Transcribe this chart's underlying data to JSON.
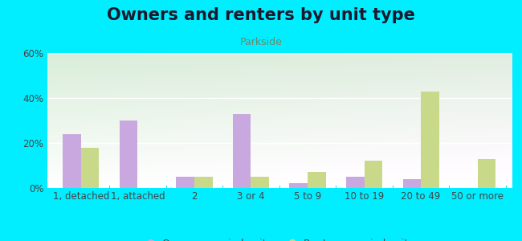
{
  "title": "Owners and renters by unit type",
  "subtitle": "Parkside",
  "categories": [
    "1, detached",
    "1, attached",
    "2",
    "3 or 4",
    "5 to 9",
    "10 to 19",
    "20 to 49",
    "50 or more"
  ],
  "owner_values": [
    24,
    30,
    5,
    33,
    2,
    5,
    4,
    0
  ],
  "renter_values": [
    18,
    0,
    5,
    5,
    7,
    12,
    43,
    13
  ],
  "owner_color": "#c9a8e0",
  "renter_color": "#c8d98a",
  "background_color": "#00eeff",
  "plot_bg_topleft": "#d6edcc",
  "plot_bg_topright": "#e8f5e0",
  "plot_bg_bottom": "#ffffff",
  "ylim": [
    0,
    60
  ],
  "yticks": [
    0,
    20,
    40,
    60
  ],
  "ytick_labels": [
    "0%",
    "20%",
    "40%",
    "60%"
  ],
  "bar_width": 0.32,
  "title_fontsize": 15,
  "subtitle_fontsize": 9,
  "legend_fontsize": 9,
  "tick_fontsize": 8.5,
  "title_color": "#1a1a2e",
  "subtitle_color": "#6a8a6a",
  "tick_color": "#444444"
}
